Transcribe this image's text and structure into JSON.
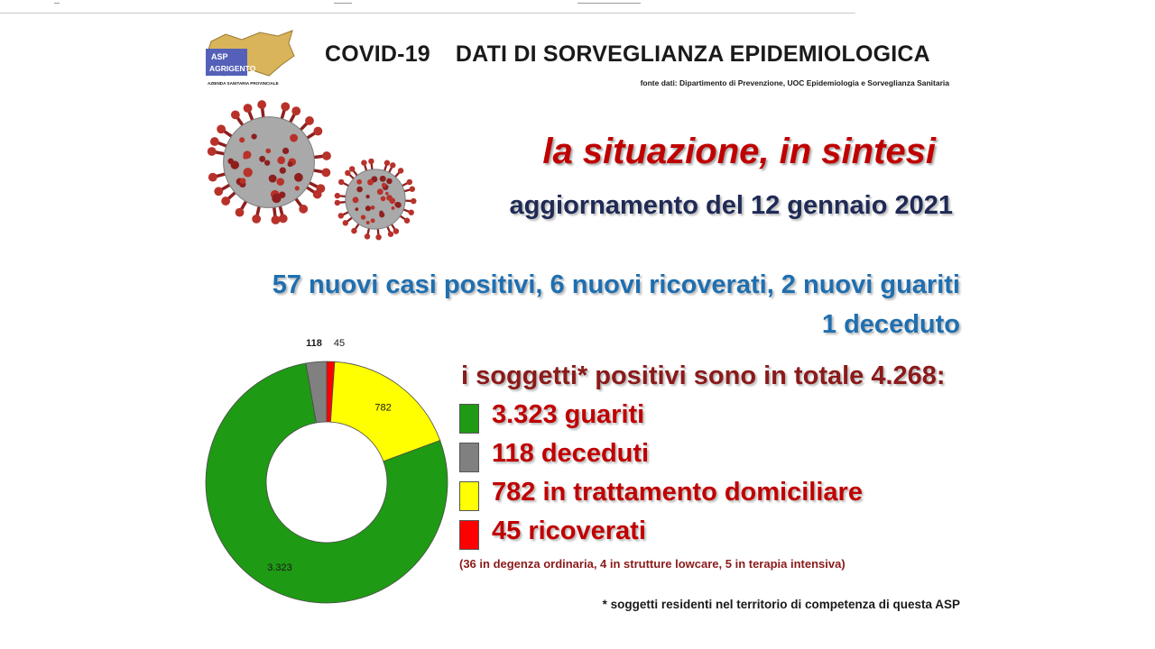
{
  "header": {
    "logo_text_top": "ASP",
    "logo_text_bottom": "AGRIGENTO",
    "logo_caption": "AZIENDA SANITARIA PROVINCIALE",
    "title_left": "COVID-19",
    "title_right": "DATI DI SORVEGLIANZA EPIDEMIOLOGICA",
    "source": "fonte dati: Dipartimento di Prevenzione, UOC Epidemiologia e Sorveglianza Sanitaria"
  },
  "headline": "la situazione, in sintesi",
  "update": "aggiornamento del 12 gennaio 2021",
  "news": {
    "line1": "57 nuovi casi positivi, 6 nuovi ricoverati, 2 nuovi guariti",
    "line2": "1 deceduto"
  },
  "total": "i soggetti* positivi sono in totale 4.268:",
  "legend": [
    {
      "label": "3.323 guariti",
      "color": "#1f9a14"
    },
    {
      "label": "118 deceduti",
      "color": "#808080"
    },
    {
      "label": "782 in trattamento domiciliare",
      "color": "#ffff00"
    },
    {
      "label": "45 ricoverati",
      "color": "#ff0000"
    }
  ],
  "detail": "(36 in degenza ordinaria, 4 in strutture lowcare, 5 in terapia intensiva)",
  "footnote": "* soggetti residenti nel territorio di competenza di questa ASP",
  "colors": {
    "headline": "#c00000",
    "update": "#1f2a55",
    "news": "#1f6fb0",
    "total": "#8b1a1a"
  },
  "chart_data": {
    "type": "pie",
    "categories": [
      "guariti",
      "deceduti",
      "ricoverati",
      "in trattamento domiciliare"
    ],
    "values": [
      3323,
      118,
      45,
      782
    ],
    "labels": [
      "3.323",
      "118",
      "45",
      "782"
    ],
    "colors": [
      "#1f9a14",
      "#808080",
      "#ff0000",
      "#ffff00"
    ],
    "order": [
      "deceduti",
      "ricoverati",
      "in trattamento domiciliare",
      "guariti"
    ],
    "hole": 0.5
  }
}
